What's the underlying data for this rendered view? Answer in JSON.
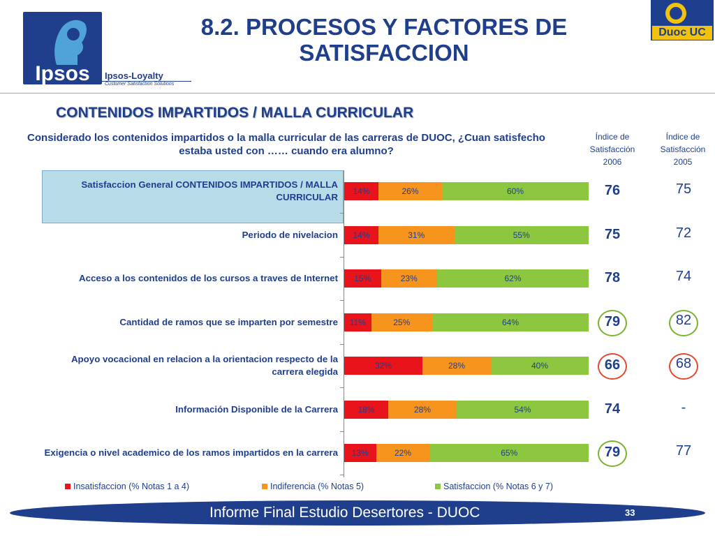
{
  "header": {
    "title_line1": "8.2. PROCESOS Y FACTORES DE",
    "title_line2": "SATISFACCION",
    "logo_text": "Ipsos",
    "loyalty_text": "Ipsos-Loyalty",
    "loyalty_sub": "Customer Satisfaction Solutions",
    "duoc_text": "Duoc UC"
  },
  "subtitle": "CONTENIDOS IMPARTIDOS / MALLA CURRICULAR",
  "question": "Considerado los contenidos impartidos o la malla curricular de las carreras de DUOC, ¿Cuan satisfecho estaba usted con …… cuando era alumno?",
  "index_headers": {
    "h2006_label": "Índice de Satisfacción",
    "h2006_year": "2006",
    "h2005_label": "Índice de Satisfacción",
    "h2005_year": "2005"
  },
  "colors": {
    "insatisfaccion": "#e8131b",
    "indiferencia": "#f7941d",
    "satisfaccion": "#8dc63f",
    "circle_green": "#7ab32e",
    "circle_red": "#e2492c"
  },
  "chart_data": {
    "type": "bar",
    "orientation": "horizontal",
    "stacked": true,
    "categories": [
      "Satisfaccion General CONTENIDOS IMPARTIDOS / MALLA CURRICULAR",
      "Periodo de nivelacion",
      "Acceso a los contenidos de los cursos a traves de Internet",
      "Cantidad de ramos que se imparten por semestre",
      "Apoyo vocacional en relacion a la orientacion respecto de la carrera elegida",
      "Información Disponible de la Carrera",
      "Exigencia o nivel academico de los ramos impartidos en la carrera"
    ],
    "series": [
      {
        "name": "Insatisfaccion (% Notas 1 a 4)",
        "values": [
          14,
          14,
          15,
          11,
          32,
          18,
          13
        ],
        "labels": [
          "14%",
          "14%",
          "15%",
          "11%",
          "32%",
          "18%",
          "13%"
        ]
      },
      {
        "name": "Indiferencia (% Notas 5)",
        "values": [
          26,
          31,
          23,
          25,
          28,
          28,
          22
        ],
        "labels": [
          "26%",
          "31%",
          "23%",
          "25%",
          "28%",
          "28%",
          "22%"
        ]
      },
      {
        "name": "Satisfaccion (% Notas 6 y 7)",
        "values": [
          60,
          55,
          62,
          64,
          40,
          54,
          65
        ],
        "labels": [
          "60%",
          "55%",
          "62%",
          "64%",
          "40%",
          "54%",
          "65%"
        ]
      }
    ],
    "xlim": [
      0,
      100
    ],
    "legend": "bottom",
    "index_2006": [
      "76",
      "75",
      "78",
      "79",
      "66",
      "74",
      "79"
    ],
    "index_2005": [
      "75",
      "72",
      "74",
      "82",
      "68",
      "-",
      "77"
    ],
    "circled_2006": [
      "",
      "",
      "",
      "green",
      "red",
      "",
      "green"
    ],
    "circled_2005": [
      "",
      "",
      "",
      "green",
      "red",
      "",
      ""
    ]
  },
  "footer": {
    "text": "Informe Final Estudio Desertores - DUOC",
    "page": "33"
  }
}
